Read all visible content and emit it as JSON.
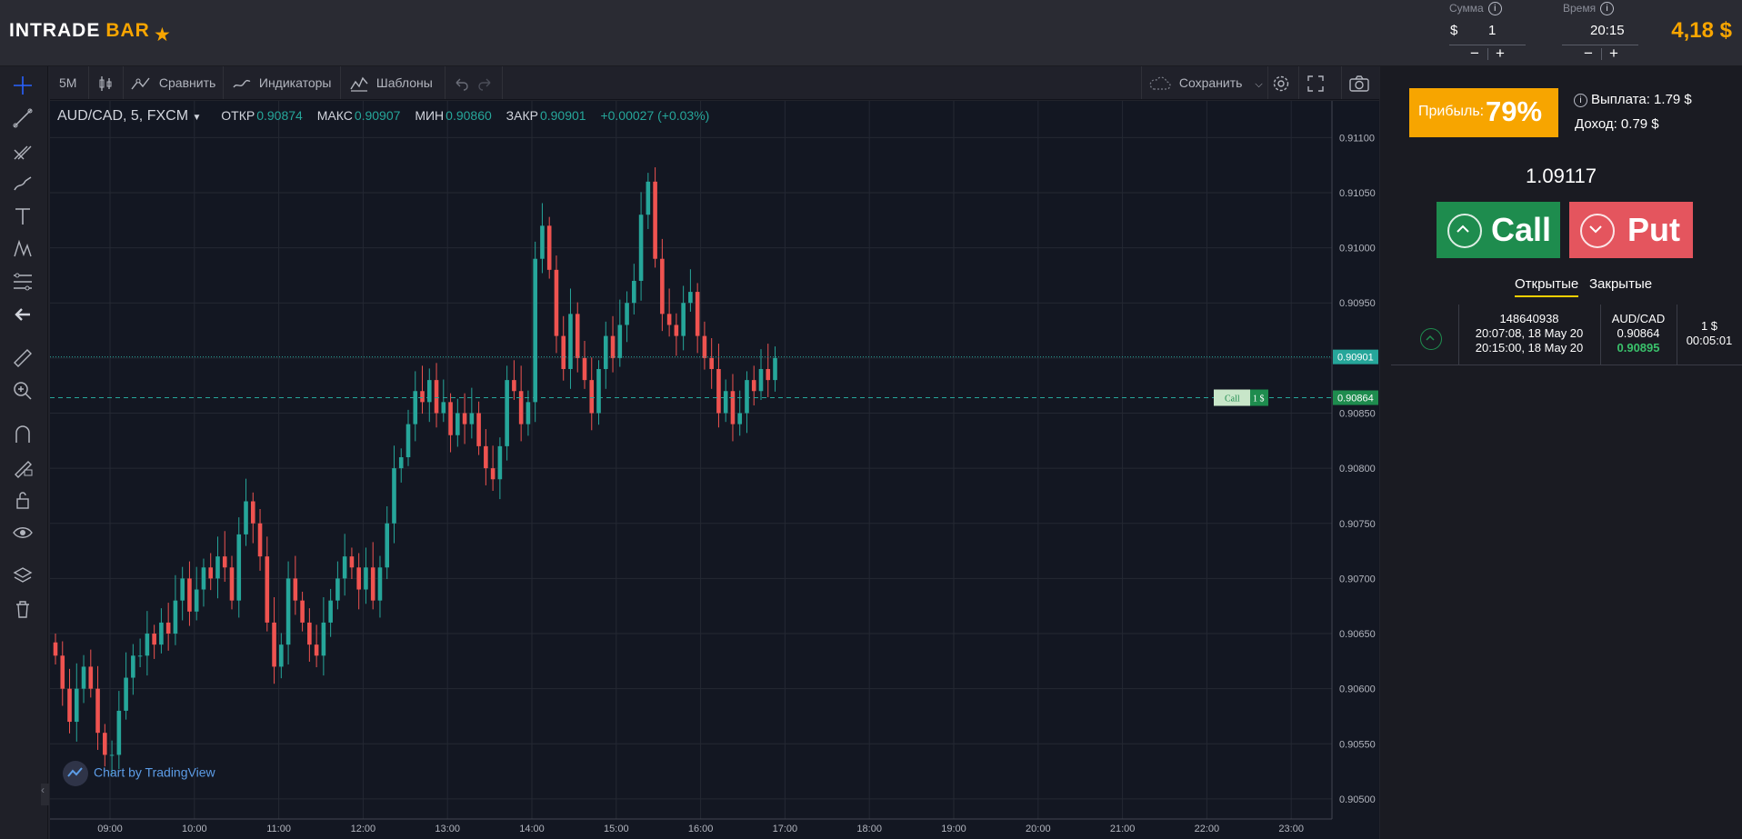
{
  "header": {
    "logo_main": "INTRADE",
    "logo_accent": "BAR",
    "amount_label": "Сумма",
    "amount_currency": "$",
    "amount_value": "1",
    "time_label": "Время",
    "time_value": "20:15",
    "minus": "−",
    "plus": "+",
    "info": "i",
    "balance": "4,18 $"
  },
  "toolbar": {
    "interval": "5M",
    "compare": "Сравнить",
    "indicators": "Индикаторы",
    "templates": "Шаблоны",
    "save": "Сохранить"
  },
  "legend": {
    "symbol": "AUD/CAD, 5, FXCM",
    "open_label": "ОТКР",
    "open_value": "0.90874",
    "high_label": "МАКС",
    "high_value": "0.90907",
    "low_label": "МИН",
    "low_value": "0.90860",
    "close_label": "ЗАКР",
    "close_value": "0.90901",
    "change": "+0.00027 (+0.03%)"
  },
  "credit": "Chart by TradingView",
  "chart_data": {
    "type": "candlestick",
    "y_ticks": [
      "0.91100",
      "0.91050",
      "0.91000",
      "0.90950",
      "0.90900",
      "0.90850",
      "0.90800",
      "0.90750",
      "0.90700",
      "0.90650",
      "0.90600",
      "0.90550",
      "0.90500"
    ],
    "ylim": [
      0.90495,
      0.91125
    ],
    "x_ticks": [
      "09:00",
      "10:00",
      "11:00",
      "12:00",
      "13:00",
      "14:00",
      "15:00",
      "16:00",
      "17:00",
      "18:00",
      "19:00",
      "20:00",
      "21:00",
      "22:00",
      "23:00"
    ],
    "current_price": "0.90901",
    "entry_price": "0.90864",
    "marker_label": "Call",
    "marker_amount": "1 $",
    "up_color": "#26a69a",
    "down_color": "#ef5350",
    "closes": [
      0.9063,
      0.906,
      0.9057,
      0.906,
      0.9062,
      0.906,
      0.9056,
      0.9054,
      0.9054,
      0.9058,
      0.9061,
      0.9063,
      0.9063,
      0.9065,
      0.9064,
      0.9066,
      0.9065,
      0.9068,
      0.907,
      0.9067,
      0.9069,
      0.9071,
      0.907,
      0.9072,
      0.9071,
      0.9068,
      0.9074,
      0.9077,
      0.9075,
      0.9072,
      0.9066,
      0.9062,
      0.9064,
      0.907,
      0.9068,
      0.9066,
      0.9064,
      0.9063,
      0.9066,
      0.9068,
      0.907,
      0.9072,
      0.9071,
      0.9069,
      0.9071,
      0.9068,
      0.9071,
      0.9075,
      0.908,
      0.9081,
      0.9084,
      0.9087,
      0.9086,
      0.9088,
      0.9085,
      0.9086,
      0.9083,
      0.9085,
      0.9084,
      0.9085,
      0.9082,
      0.908,
      0.9079,
      0.9082,
      0.9088,
      0.9087,
      0.9084,
      0.9086,
      0.9099,
      0.9102,
      0.9098,
      0.9092,
      0.9089,
      0.9094,
      0.909,
      0.9088,
      0.9085,
      0.9089,
      0.9092,
      0.909,
      0.9093,
      0.9095,
      0.9097,
      0.9103,
      0.9106,
      0.9099,
      0.9094,
      0.9093,
      0.9092,
      0.9095,
      0.9096,
      0.9092,
      0.909,
      0.9089,
      0.9085,
      0.9087,
      0.9084,
      0.9085,
      0.9088,
      0.9087,
      0.9089,
      0.9088,
      0.909
    ]
  },
  "trade_panel": {
    "profit_label": "Прибыль:",
    "profit_value": "79%",
    "payout_text": "Выплата: 1.79 $",
    "income_text": "Доход: 0.79 $",
    "current_price": "1.09117",
    "call_label": "Call",
    "put_label": "Put",
    "tab_open": "Открытые",
    "tab_closed": "Закрытые",
    "trade": {
      "id": "148640938",
      "open_time": "20:07:08, 18 May 20",
      "close_time": "20:15:00, 18 May 20",
      "pair": "AUD/CAD",
      "open_price": "0.90864",
      "current_price": "0.90895",
      "amount": "1 $",
      "time_left": "00:05:01"
    }
  }
}
